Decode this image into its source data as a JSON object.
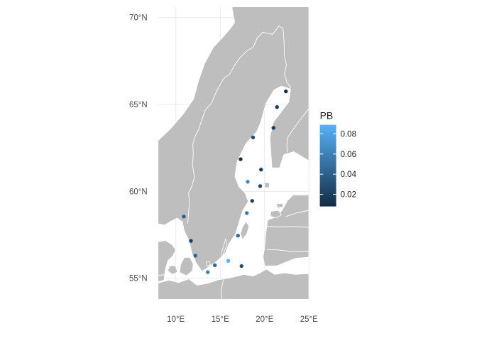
{
  "map": {
    "x_range": [
      8,
      25
    ],
    "y_range": [
      53.8,
      70.6
    ],
    "x_ticks": [
      {
        "value": 10,
        "label": "10°E"
      },
      {
        "value": 15,
        "label": "15°E"
      },
      {
        "value": 20,
        "label": "20°E"
      },
      {
        "value": 25,
        "label": "25°E"
      }
    ],
    "y_ticks": [
      {
        "value": 70,
        "label": "70°N"
      },
      {
        "value": 65,
        "label": "65°N"
      },
      {
        "value": 60,
        "label": "60°N"
      },
      {
        "value": 55,
        "label": "55°N"
      }
    ],
    "land_color": "#bebebe",
    "sea_color": "#ffffff",
    "border_color": "#ffffff",
    "grid": true
  },
  "legend": {
    "title": "PB",
    "placement": "right",
    "scale_min": 0.008,
    "scale_max": 0.089,
    "color_low": "#132b43",
    "color_high": "#56b1f7",
    "ticks": [
      {
        "value": 0.02,
        "label": "0.02"
      },
      {
        "value": 0.04,
        "label": "0.04"
      },
      {
        "value": 0.06,
        "label": "0.06"
      },
      {
        "value": 0.08,
        "label": "0.08"
      }
    ]
  },
  "points": [
    {
      "lon": 22.4,
      "lat": 65.75,
      "pb": 0.01
    },
    {
      "lon": 21.4,
      "lat": 64.85,
      "pb": 0.018
    },
    {
      "lon": 21.0,
      "lat": 63.65,
      "pb": 0.018
    },
    {
      "lon": 18.7,
      "lat": 63.1,
      "pb": 0.03
    },
    {
      "lon": 17.3,
      "lat": 61.85,
      "pb": 0.012
    },
    {
      "lon": 19.6,
      "lat": 61.25,
      "pb": 0.02
    },
    {
      "lon": 18.1,
      "lat": 60.55,
      "pb": 0.065
    },
    {
      "lon": 19.5,
      "lat": 60.3,
      "pb": 0.025
    },
    {
      "lon": 18.6,
      "lat": 59.45,
      "pb": 0.022
    },
    {
      "lon": 18.0,
      "lat": 58.75,
      "pb": 0.055
    },
    {
      "lon": 10.9,
      "lat": 58.55,
      "pb": 0.038
    },
    {
      "lon": 17.0,
      "lat": 57.45,
      "pb": 0.048
    },
    {
      "lon": 11.7,
      "lat": 57.15,
      "pb": 0.02
    },
    {
      "lon": 12.2,
      "lat": 56.3,
      "pb": 0.042
    },
    {
      "lon": 15.9,
      "lat": 56.0,
      "pb": 0.089
    },
    {
      "lon": 14.4,
      "lat": 55.75,
      "pb": 0.045
    },
    {
      "lon": 17.4,
      "lat": 55.7,
      "pb": 0.028
    },
    {
      "lon": 13.6,
      "lat": 55.35,
      "pb": 0.06
    }
  ]
}
